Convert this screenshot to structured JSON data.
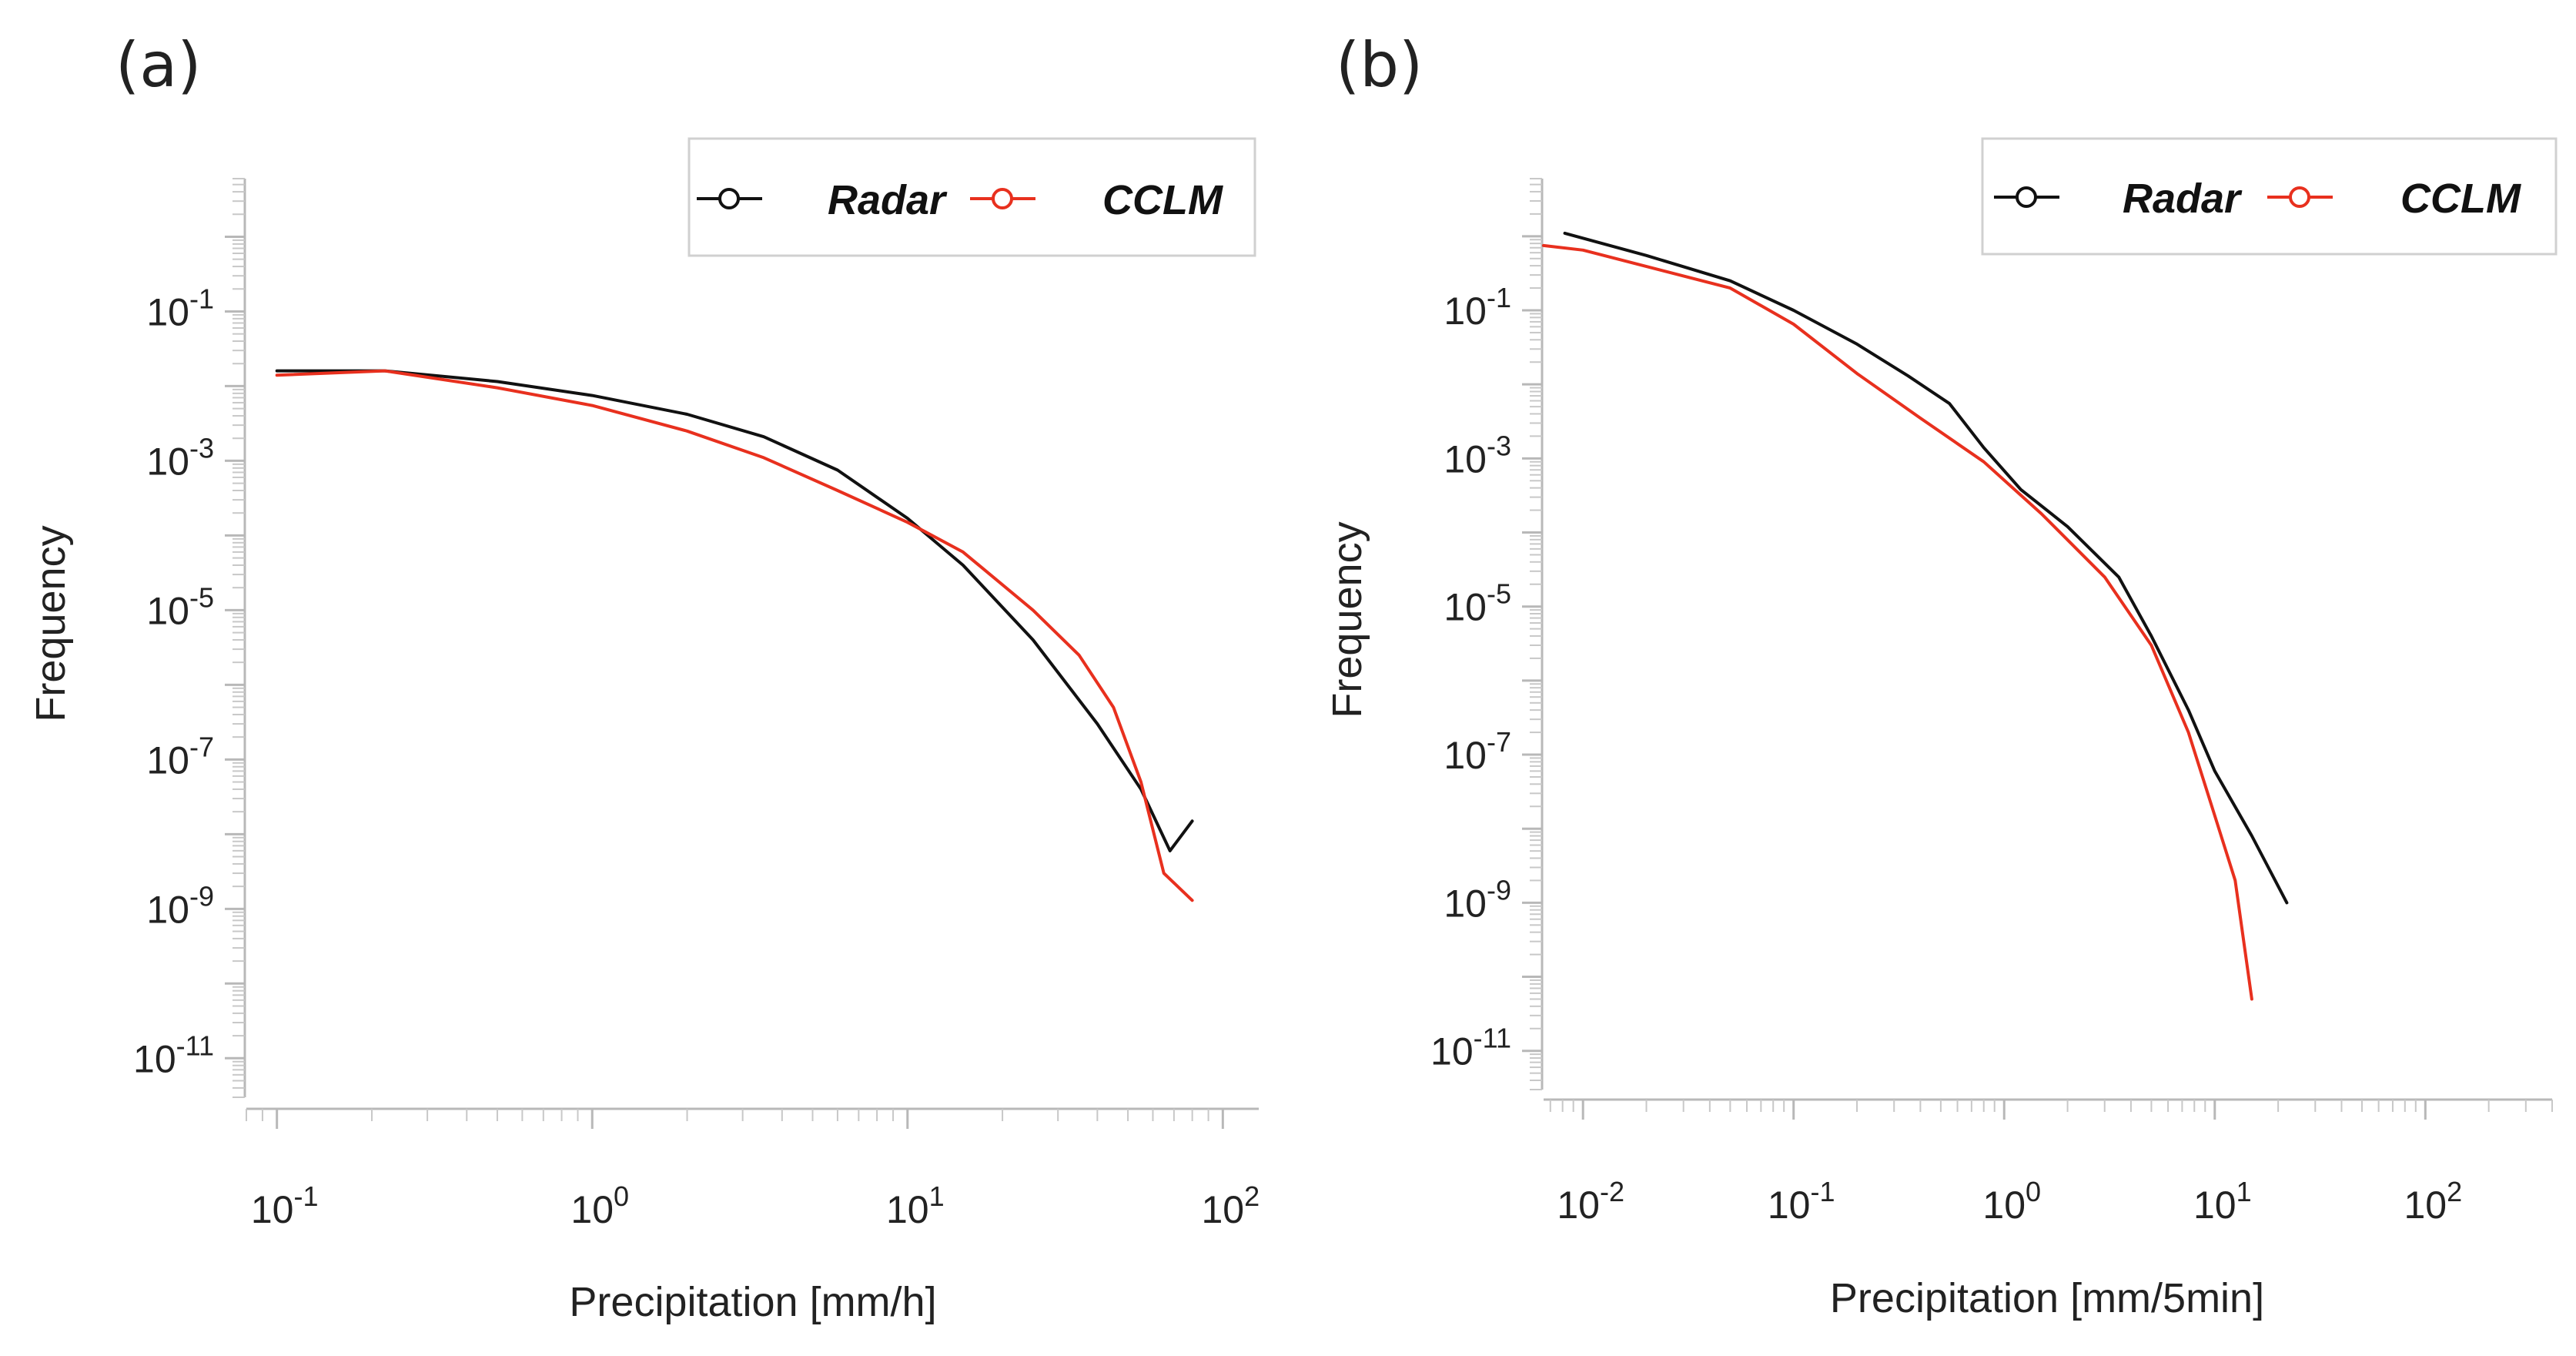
{
  "chart_data": [
    {
      "type": "line",
      "panel_label": "(a)",
      "xlabel": "Precipitation [mm/h]",
      "ylabel": "Frequency",
      "x_scale": "log",
      "y_scale": "log",
      "xlim": [
        0.08,
        130
      ],
      "ylim": [
        3e-12,
        6
      ],
      "x_ticks": [
        {
          "base": "10",
          "exp": "-1"
        },
        {
          "base": "10",
          "exp": "0"
        },
        {
          "base": "10",
          "exp": "1"
        },
        {
          "base": "10",
          "exp": "2"
        }
      ],
      "y_ticks": [
        {
          "base": "10",
          "exp": "-1"
        },
        {
          "base": "10",
          "exp": "-3"
        },
        {
          "base": "10",
          "exp": "-5"
        },
        {
          "base": "10",
          "exp": "-7"
        },
        {
          "base": "10",
          "exp": "-9"
        },
        {
          "base": "10",
          "exp": "-11"
        }
      ],
      "legend": {
        "position": "top-right",
        "entries": [
          "Radar",
          "CCLM"
        ]
      },
      "series": [
        {
          "name": "Radar",
          "color": "#111111",
          "x": [
            0.1,
            0.22,
            0.5,
            1.0,
            2.0,
            3.5,
            6.0,
            10.0,
            15.0,
            25.0,
            40.0,
            55.0,
            68.0,
            80.0
          ],
          "y": [
            0.016,
            0.016,
            0.0115,
            0.0075,
            0.0042,
            0.0021,
            0.00075,
            0.00017,
            4e-05,
            4e-06,
            3e-07,
            4e-08,
            6e-09,
            1.5e-08
          ]
        },
        {
          "name": "CCLM",
          "color": "#e8301e",
          "x": [
            0.1,
            0.22,
            0.5,
            1.0,
            2.0,
            3.5,
            6.0,
            10.0,
            15.0,
            25.0,
            35.0,
            45.0,
            55.0,
            65.0,
            80.0
          ],
          "y": [
            0.014,
            0.016,
            0.0095,
            0.0055,
            0.0025,
            0.0011,
            0.0004,
            0.00015,
            6e-05,
            1e-05,
            2.5e-06,
            5e-07,
            5e-08,
            3e-09,
            1.3e-09
          ]
        }
      ]
    },
    {
      "type": "line",
      "panel_label": "(b)",
      "xlabel": "Precipitation [mm/5min]",
      "ylabel": "Frequency",
      "x_scale": "log",
      "y_scale": "log",
      "xlim": [
        0.0065,
        400
      ],
      "ylim": [
        3e-12,
        6
      ],
      "x_ticks": [
        {
          "base": "10",
          "exp": "-2"
        },
        {
          "base": "10",
          "exp": "-1"
        },
        {
          "base": "10",
          "exp": "0"
        },
        {
          "base": "10",
          "exp": "1"
        },
        {
          "base": "10",
          "exp": "2"
        }
      ],
      "y_ticks": [
        {
          "base": "10",
          "exp": "-1"
        },
        {
          "base": "10",
          "exp": "-3"
        },
        {
          "base": "10",
          "exp": "-5"
        },
        {
          "base": "10",
          "exp": "-7"
        },
        {
          "base": "10",
          "exp": "-9"
        },
        {
          "base": "10",
          "exp": "-11"
        }
      ],
      "legend": {
        "position": "top-right",
        "entries": [
          "Radar",
          "CCLM"
        ]
      },
      "series": [
        {
          "name": "Radar",
          "color": "#111111",
          "x": [
            0.0082,
            0.02,
            0.05,
            0.1,
            0.2,
            0.35,
            0.55,
            0.8,
            1.2,
            2.0,
            3.5,
            5.0,
            7.5,
            10.0,
            15.0,
            22.0
          ],
          "y": [
            1.1,
            0.55,
            0.25,
            0.1,
            0.035,
            0.013,
            0.0055,
            0.0014,
            0.00038,
            0.00012,
            2.5e-05,
            4e-06,
            4e-07,
            6e-08,
            8e-09,
            1e-09
          ]
        },
        {
          "name": "CCLM",
          "color": "#e8301e",
          "x": [
            0.0065,
            0.01,
            0.05,
            0.1,
            0.2,
            0.4,
            0.8,
            1.5,
            3.0,
            5.0,
            7.5,
            10.0,
            12.5,
            15.0
          ],
          "y": [
            0.75,
            0.65,
            0.2,
            0.065,
            0.014,
            0.0035,
            0.0009,
            0.00018,
            2.5e-05,
            3e-06,
            2e-07,
            1.5e-08,
            2e-09,
            5e-11
          ]
        }
      ]
    }
  ]
}
